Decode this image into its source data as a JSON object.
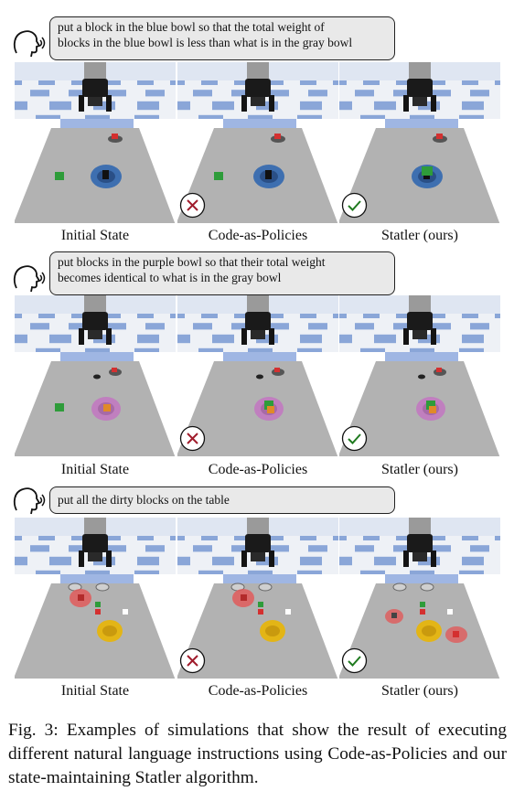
{
  "rows": [
    {
      "instruction": "put a block in the blue bowl so that the total weight of blocks in the blue bowl is less than what is in the gray bowl",
      "instruction_lines": [
        "put a block in the blue bowl so that the total weight of",
        "blocks in the blue bowl is less than what is in the gray bowl"
      ],
      "panels": [
        {
          "caption": "Initial State"
        },
        {
          "caption": "Code-as-Policies",
          "result": "fail"
        },
        {
          "caption": "Statler (ours)",
          "result": "success"
        }
      ]
    },
    {
      "instruction": "put blocks in the purple bowl so that their total weight becomes identical to what is in the gray bowl",
      "instruction_lines": [
        "put blocks in the purple bowl so that their total weight",
        "becomes identical to what is in the gray bowl"
      ],
      "panels": [
        {
          "caption": "Initial State"
        },
        {
          "caption": "Code-as-Policies",
          "result": "fail"
        },
        {
          "caption": "Statler (ours)",
          "result": "success"
        }
      ]
    },
    {
      "instruction": "put all the dirty blocks on the table",
      "instruction_lines": [
        "put all the dirty blocks on the table"
      ],
      "panels": [
        {
          "caption": "Initial State"
        },
        {
          "caption": "Code-as-Policies",
          "result": "fail"
        },
        {
          "caption": "Statler (ours)",
          "result": "success"
        }
      ]
    }
  ],
  "icons": {
    "speaker": "speaking-head-icon",
    "fail": "cross-icon",
    "success": "check-icon"
  },
  "colors": {
    "fail": "#a01c2c",
    "success": "#1f7a1f",
    "sky": "#dfe6f2",
    "checker": "#8aa6d8",
    "table": "#b2b2b2",
    "blue_bowl": "#3e6fb0",
    "purple_bowl": "#c07fbf",
    "yellow_bowl": "#e3b516"
  },
  "figure_caption": "Fig. 3: Examples of simulations that show the result of executing different natural language instructions using Code-as-Policies and our state-maintaining Statler algorithm."
}
